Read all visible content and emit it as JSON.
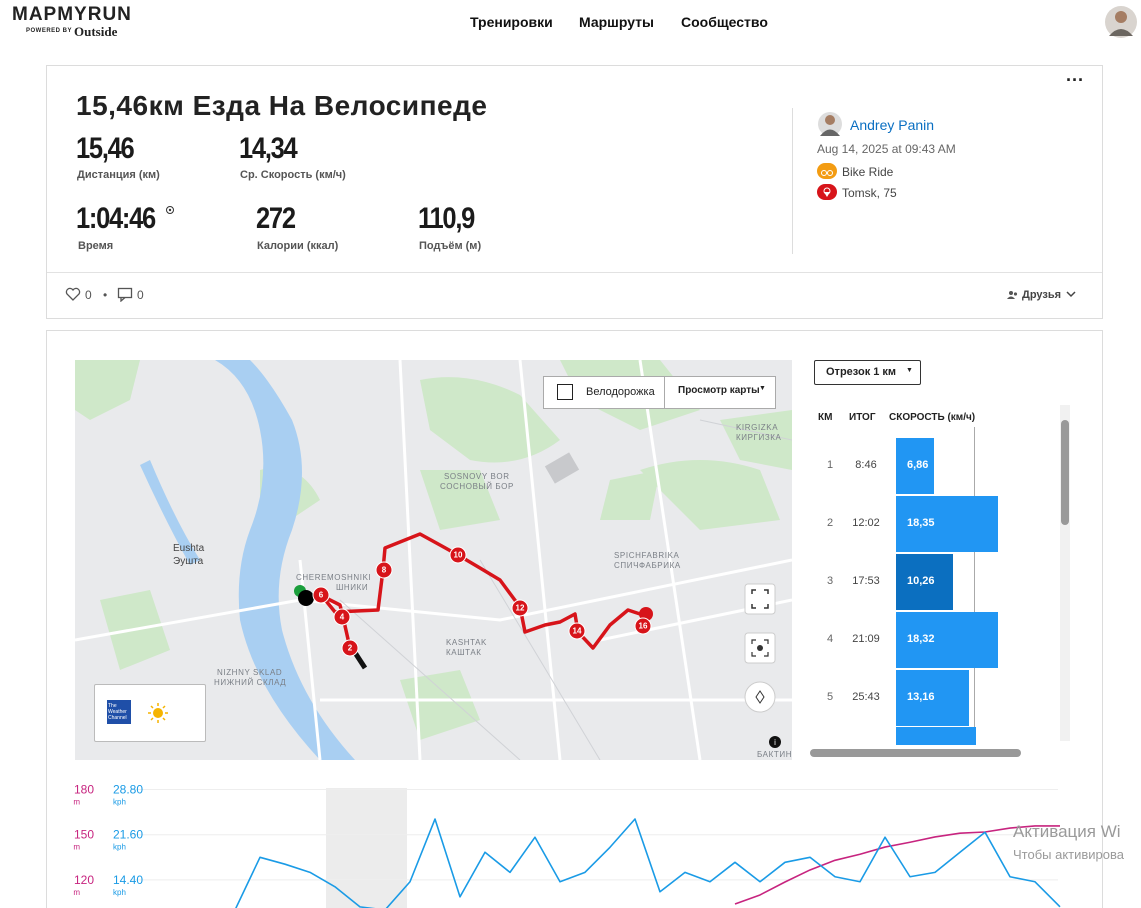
{
  "header": {
    "logo": "MAPMYRUN",
    "powered_by": "POWERED BY",
    "brand": "Outside",
    "nav": [
      "Тренировки",
      "Маршруты",
      "Сообщество"
    ]
  },
  "workout": {
    "title": "15,46км Езда На Велосипеде",
    "stats": [
      {
        "value": "15,46",
        "label": "Дистанция (км)"
      },
      {
        "value": "14,34",
        "label": "Ср. Скорость (км/ч)"
      },
      {
        "value": "1:04:46",
        "label": "Время"
      },
      {
        "value": "272",
        "label": "Калории (ккал)"
      },
      {
        "value": "110,9",
        "label": "Подъём (м)"
      }
    ],
    "user": "Andrey Panin",
    "date": "Aug 14, 2025 at 09:43 AM",
    "activity": "Bike Ride",
    "location": "Tomsk, 75",
    "likes": "0",
    "comments": "0",
    "privacy": "Друзья"
  },
  "map": {
    "bike_lanes": "Велодорожка",
    "map_view": "Просмотр карты",
    "places": [
      "Eushta",
      "Эушта",
      "CHEREMOSHNIKI",
      "ШНИКИ",
      "SOSNOVY BOR",
      "СОСНОВЫЙ БОР",
      "KIRGIZKA",
      "КИРГИЗКА",
      "SPICHFABRIKA",
      "СПИЧФАБРИКА",
      "KASHTAK",
      "КАШТАК",
      "NIZHNY SKLAD",
      "НИЖНИЙ СКЛАД",
      "БАКТИН"
    ],
    "markers": [
      "2",
      "4",
      "6",
      "8",
      "10",
      "12",
      "14",
      "16"
    ],
    "weather": "The Weather Channel"
  },
  "splits": {
    "interval": "Отрезок 1 км",
    "columns": [
      "КМ",
      "ИТОГ",
      "СКОРОСТЬ (км/ч)"
    ],
    "rows": [
      {
        "km": "1",
        "time": "8:46",
        "speed": {
          "value": 6.86,
          "label": "6,86"
        },
        "color": "#2196f3"
      },
      {
        "km": "2",
        "time": "12:02",
        "speed": {
          "value": 18.35,
          "label": "18,35"
        },
        "color": "#2196f3"
      },
      {
        "km": "3",
        "time": "17:53",
        "speed": {
          "value": 10.26,
          "label": "10,26"
        },
        "color": "#0b6fc0"
      },
      {
        "km": "4",
        "time": "21:09",
        "speed": {
          "value": 18.32,
          "label": "18,32"
        },
        "color": "#2196f3"
      },
      {
        "km": "5",
        "time": "25:43",
        "speed": {
          "value": 13.16,
          "label": "13,16"
        },
        "color": "#2196f3"
      }
    ]
  },
  "chart_data": {
    "type": "line",
    "y_unit": "m",
    "y2_unit": "kph",
    "ylim": [
      100,
      185
    ],
    "yticks": [
      180,
      150,
      120
    ],
    "y2lim": [
      9.6,
      30
    ],
    "y2ticks": [
      {
        "value": 28.8,
        "label": "28.80"
      },
      {
        "value": 21.6,
        "label": "21.60"
      },
      {
        "value": 14.4,
        "label": "14.40"
      }
    ],
    "grid": true,
    "series": [
      {
        "color": "#c7247f",
        "values": [
          null,
          null,
          null,
          null,
          null,
          null,
          null,
          null,
          null,
          null,
          null,
          null,
          null,
          null,
          null,
          null,
          null,
          null,
          null,
          null,
          104,
          110,
          118.6,
          126.6,
          133,
          137,
          141.8,
          145,
          148.5,
          151,
          151.8,
          154.4,
          155.8,
          155.8
        ]
      },
      {
        "color": "#1a9be6",
        "axis": "y2",
        "values": [
          9.6,
          18.0,
          16.9,
          15.6,
          13.3,
          10.1,
          9.6,
          14.1,
          24.1,
          11.7,
          18.8,
          15.6,
          21.2,
          14.1,
          15.6,
          19.6,
          24.1,
          12.5,
          15.6,
          14.1,
          17.2,
          14.1,
          17.2,
          18.0,
          14.9,
          14.1,
          21.2,
          14.9,
          15.6,
          18.8,
          22.0,
          14.9,
          14.1,
          10.1
        ]
      }
    ]
  },
  "watermark": {
    "line1": "Активация Wi",
    "line2": "Чтобы активирова"
  }
}
